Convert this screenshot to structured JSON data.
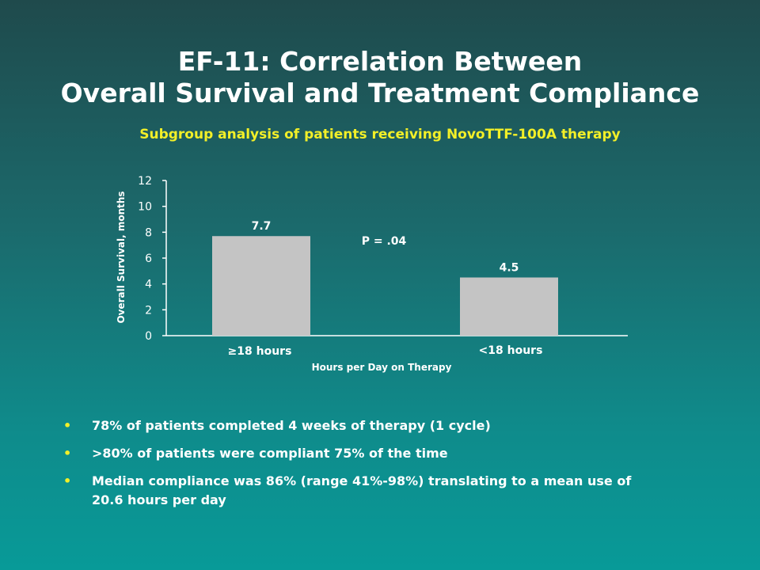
{
  "slide": {
    "title_line1": "EF-11: Correlation Between",
    "title_line2": "Overall Survival and Treatment Compliance",
    "subtitle": "Subgroup analysis of patients receiving NovoTTF-100A therapy",
    "bullets": [
      "78% of patients completed 4 weeks of therapy (1 cycle)",
      ">80% of patients were compliant 75% of the time",
      "Median compliance was 86% (range 41%-98%) translating to a mean use of 20.6 hours per day"
    ],
    "bullet_marker": "•"
  },
  "chart_data": {
    "type": "bar",
    "categories": [
      "≥18 hours",
      "<18 hours"
    ],
    "values": [
      7.7,
      4.5
    ],
    "data_labels": [
      "7.7",
      "4.5"
    ],
    "xlabel": "Hours per Day on Therapy",
    "ylabel": "Overall Survival, months",
    "ylim": [
      0,
      12
    ],
    "yticks": [
      0,
      2,
      4,
      6,
      8,
      10,
      12
    ],
    "annotation": "P = .04",
    "bar_color": "#c4c4c4",
    "axis_color": "#ffffff",
    "grid": false
  }
}
